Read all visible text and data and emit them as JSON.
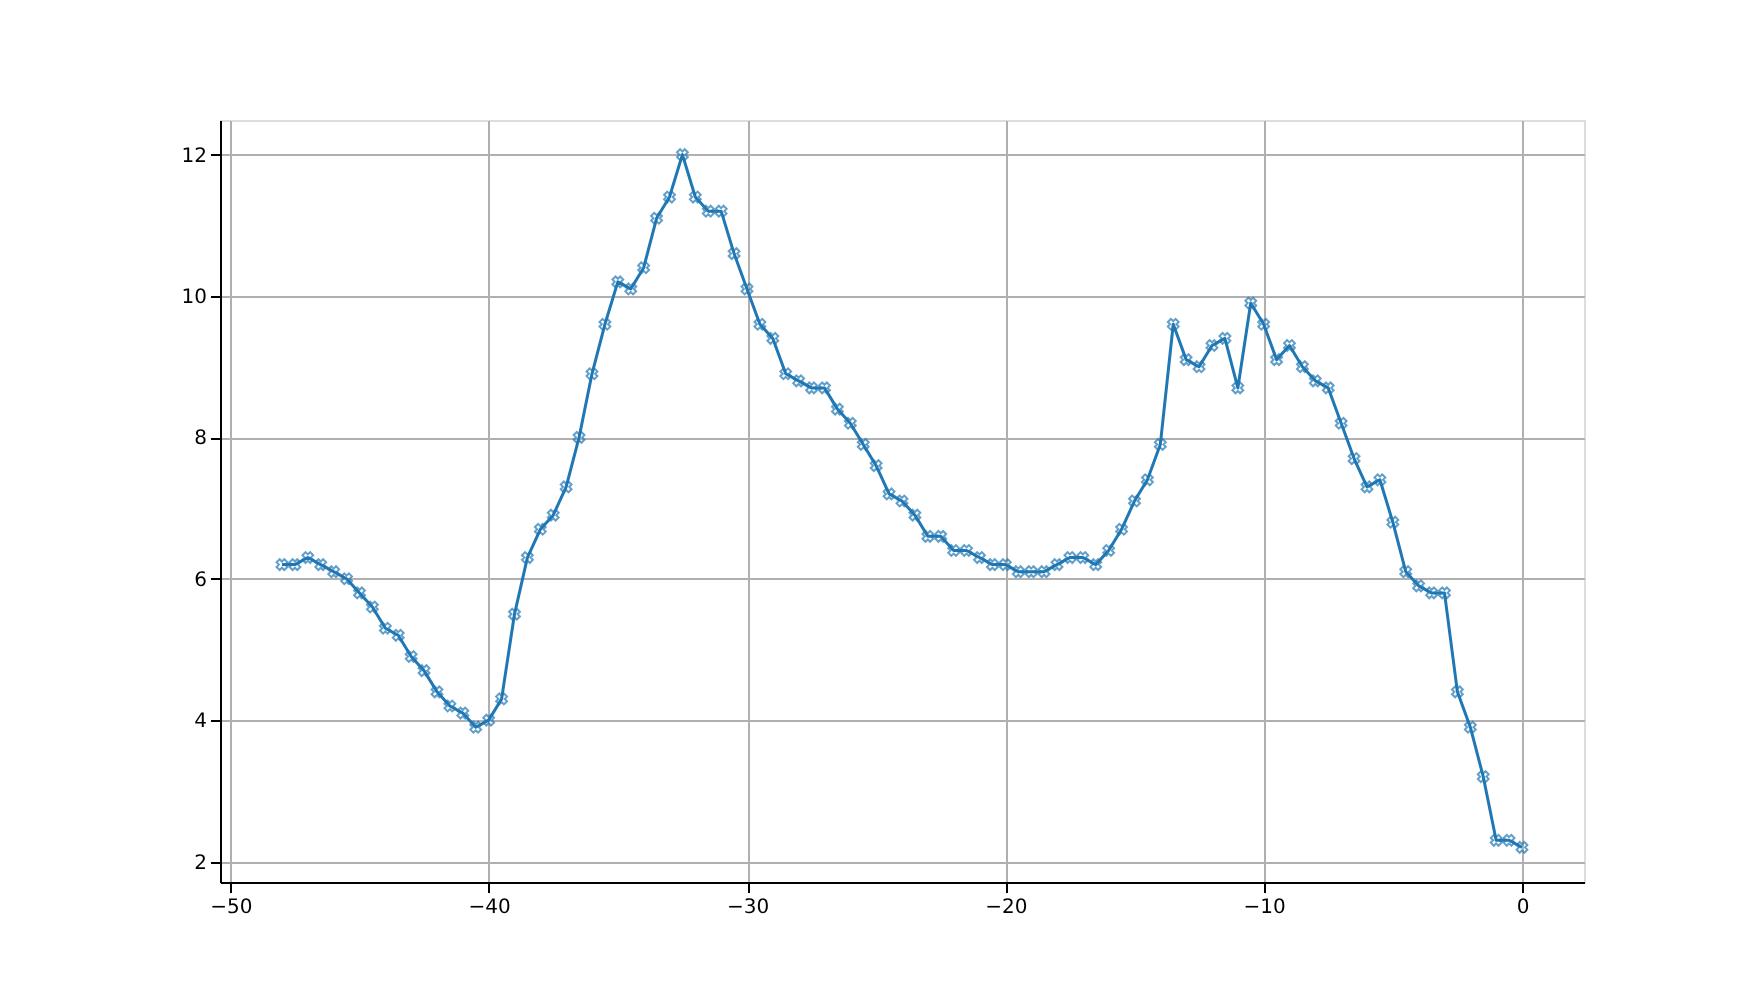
{
  "chart_data": {
    "type": "line",
    "x": [
      -48,
      -47.5,
      -47,
      -46.5,
      -46,
      -45.5,
      -45,
      -44.5,
      -44,
      -43.5,
      -43,
      -42.5,
      -42,
      -41.5,
      -41,
      -40.5,
      -40,
      -39.5,
      -39,
      -38.5,
      -38,
      -37.5,
      -37,
      -36.5,
      -36,
      -35.5,
      -35,
      -34.5,
      -34,
      -33.5,
      -33,
      -32.5,
      -32,
      -31.5,
      -31,
      -30.5,
      -30,
      -29.5,
      -29,
      -28.5,
      -28,
      -27.5,
      -27,
      -26.5,
      -26,
      -25.5,
      -25,
      -24.5,
      -24,
      -23.5,
      -23,
      -22.5,
      -22,
      -21.5,
      -21,
      -20.5,
      -20,
      -19.5,
      -19,
      -18.5,
      -18,
      -17.5,
      -17,
      -16.5,
      -16,
      -15.5,
      -15,
      -14.5,
      -14,
      -13.5,
      -13,
      -12.5,
      -12,
      -11.5,
      -11,
      -10.5,
      -10,
      -9.5,
      -9,
      -8.5,
      -8,
      -7.5,
      -7,
      -6.5,
      -6,
      -5.5,
      -5,
      -4.5,
      -4,
      -3.5,
      -3,
      -2.5,
      -2,
      -1.5,
      -1,
      -0.5,
      0
    ],
    "series": [
      {
        "color": "#1f77b4",
        "values": [
          6.2,
          6.2,
          6.3,
          6.2,
          6.1,
          6.0,
          5.8,
          5.6,
          5.3,
          5.2,
          4.9,
          4.7,
          4.4,
          4.2,
          4.1,
          3.9,
          4.0,
          4.3,
          5.5,
          6.3,
          6.7,
          6.9,
          7.3,
          8.0,
          8.9,
          9.6,
          10.2,
          10.1,
          10.4,
          11.1,
          11.4,
          12.0,
          11.4,
          11.2,
          11.2,
          10.6,
          10.1,
          9.6,
          9.4,
          8.9,
          8.8,
          8.7,
          8.7,
          8.4,
          8.2,
          7.9,
          7.6,
          7.2,
          7.1,
          6.9,
          6.6,
          6.6,
          6.4,
          6.4,
          6.3,
          6.2,
          6.2,
          6.1,
          6.1,
          6.1,
          6.2,
          6.3,
          6.3,
          6.2,
          6.4,
          6.7,
          7.1,
          7.4,
          7.9,
          9.6,
          9.1,
          9.0,
          9.3,
          9.4,
          8.7,
          9.9,
          9.6,
          9.1,
          9.3,
          9.0,
          8.8,
          8.7,
          8.2,
          7.7,
          7.3,
          7.4,
          6.8,
          6.1,
          5.9,
          5.8,
          5.8,
          4.4,
          3.9,
          3.2,
          2.3,
          2.3,
          2.2
        ]
      }
    ],
    "xlim": [
      -50.4,
      2.4
    ],
    "ylim": [
      1.71,
      12.49
    ],
    "xticks": [
      -50,
      -40,
      -30,
      -20,
      -10,
      0
    ],
    "yticks": [
      2,
      4,
      6,
      8,
      10,
      12
    ],
    "grid": true,
    "marker": "cross",
    "line_style": "solid",
    "legend": false
  }
}
